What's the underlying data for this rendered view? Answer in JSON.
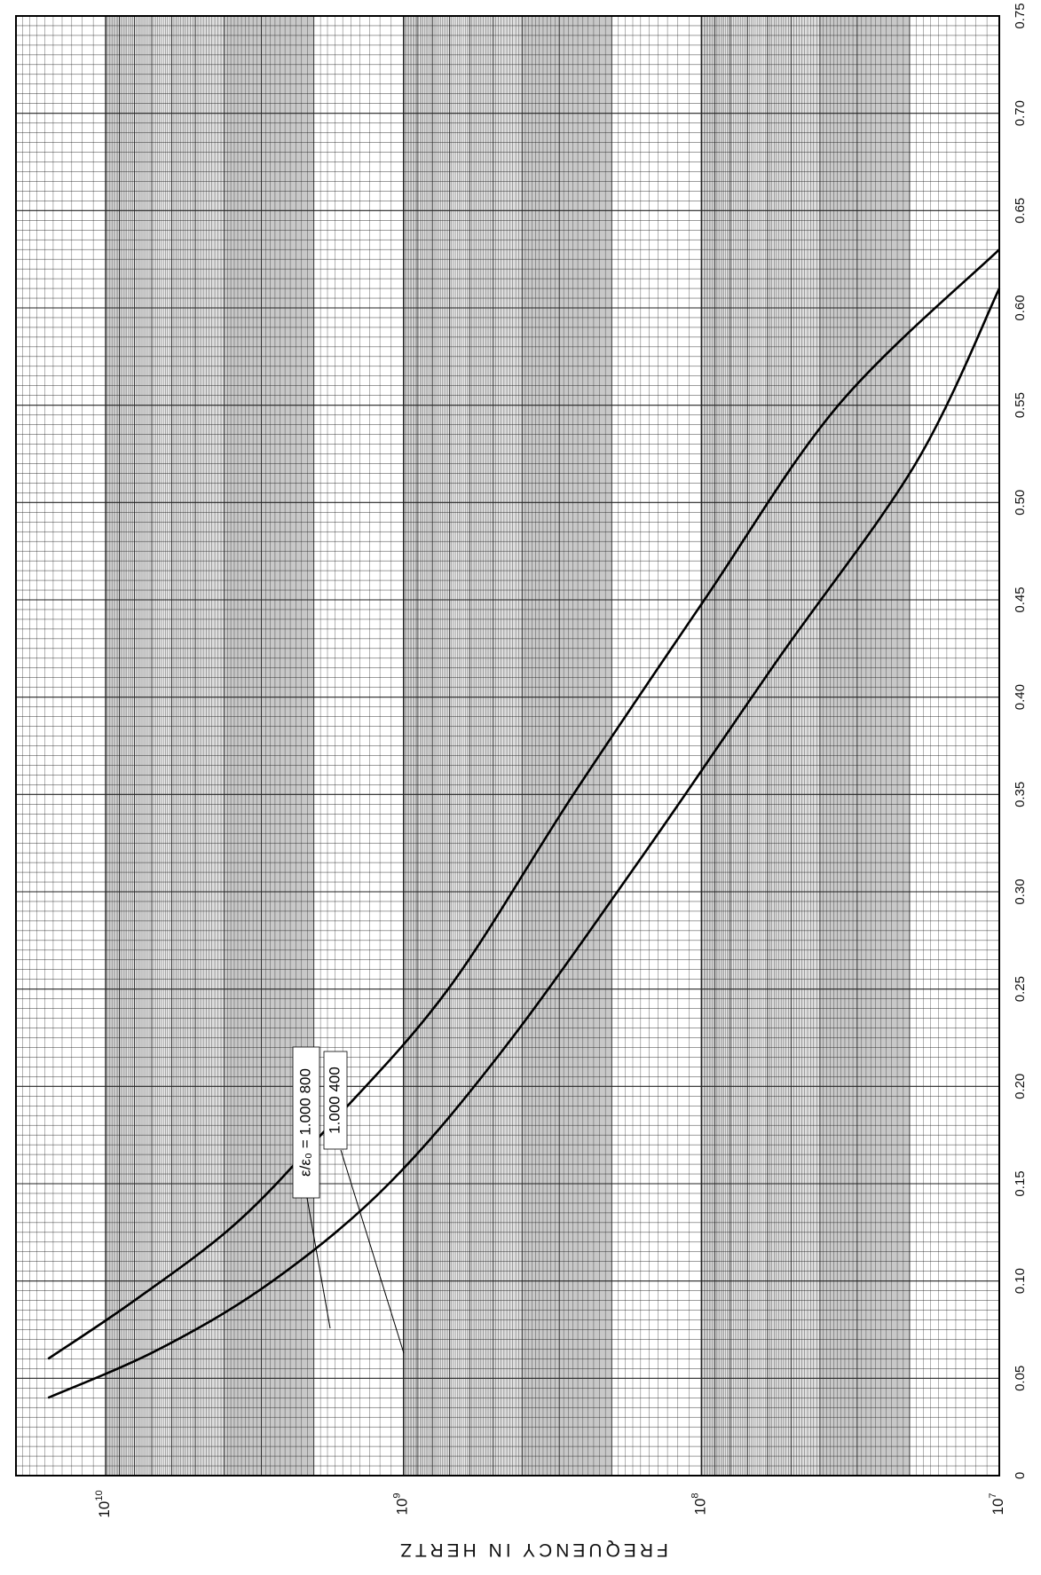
{
  "chart_data": {
    "type": "line",
    "title": "",
    "xlabel": "",
    "ylabel": "FREQUENCY IN HERTZ",
    "y_scale": "log",
    "xlim": [
      0,
      0.75
    ],
    "ylim": [
      10000000,
      20000000000
    ],
    "x_ticks": [
      "0",
      "0.05",
      "0.10",
      "0.15",
      "0.20",
      "0.25",
      "0.30",
      "0.35",
      "0.40",
      "0.45",
      "0.50",
      "0.55",
      "0.60",
      "0.65",
      "0.70",
      "0.75"
    ],
    "y_ticks": [
      {
        "value": 10000000,
        "base": "10",
        "exp": "7"
      },
      {
        "value": 100000000,
        "base": "10",
        "exp": "8"
      },
      {
        "value": 1000000000,
        "base": "10",
        "exp": "9"
      },
      {
        "value": 10000000000,
        "base": "10",
        "exp": "10"
      }
    ],
    "grid": true,
    "series": [
      {
        "name": "ε/ε₀ = 1.000 800",
        "x": [
          0.06,
          0.09,
          0.13,
          0.18,
          0.25,
          0.35,
          0.45,
          0.55,
          0.63
        ],
        "y": [
          15600000000,
          8000000000,
          3630000000,
          1770000000,
          708000000,
          269000000,
          97700000,
          34700000,
          10000000
        ]
      },
      {
        "name": "1.000 400",
        "x": [
          0.04,
          0.065,
          0.1,
          0.15,
          0.22,
          0.32,
          0.42,
          0.52,
          0.61
        ],
        "y": [
          15600000000,
          6610000000,
          2750000000,
          1120000000,
          457000000,
          155000000,
          55000000,
          19100000,
          10000000
        ]
      }
    ],
    "labels": [
      {
        "text": "ε/ε₀ = 1.000 800",
        "series": 0
      },
      {
        "text": "1.000 400",
        "series": 1
      }
    ]
  }
}
